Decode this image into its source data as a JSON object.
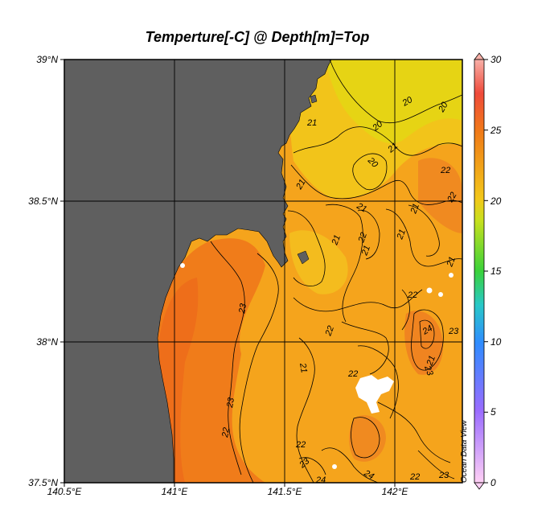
{
  "title": "Temperture[-C] @ Depth[m]=Top",
  "watermark": "Ocean Data View",
  "axes": {
    "lat_ticks": [
      "39°N",
      "38.5°N",
      "38°N",
      "37.5°N"
    ],
    "lon_ticks": [
      "140.5°E",
      "141°E",
      "141.5°E",
      "142°E"
    ]
  },
  "colorbar": {
    "ticks": [
      "30",
      "25",
      "20",
      "15",
      "10",
      "5",
      "0"
    ],
    "range": [
      0,
      30
    ]
  },
  "contour_labels": [
    "20",
    "20",
    "20",
    "20",
    "21",
    "21",
    "21",
    "21",
    "21",
    "21",
    "21",
    "21",
    "21",
    "21",
    "21",
    "22",
    "22",
    "22",
    "22",
    "22",
    "22",
    "22",
    "22",
    "22",
    "23",
    "23",
    "23",
    "23",
    "23",
    "23",
    "24",
    "24",
    "24"
  ],
  "colors": {
    "land": "#5f5f5f",
    "ocean_warm": "#f07a18",
    "ocean_mid": "#f5a71a",
    "ocean_cool": "#e2d414"
  }
}
